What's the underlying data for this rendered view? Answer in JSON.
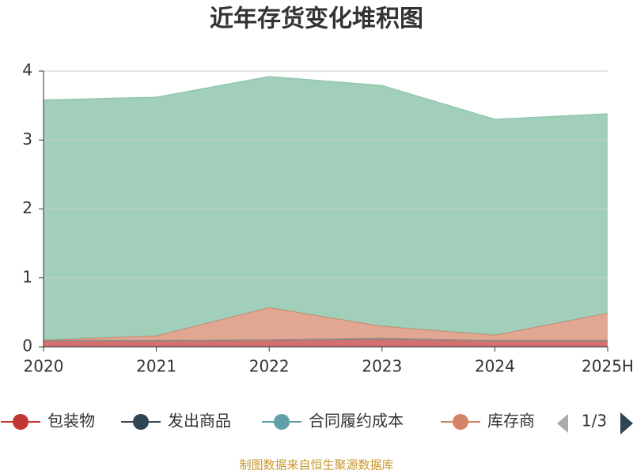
{
  "chart_data": {
    "type": "stacked_area",
    "title": "近年存货变化堆积图",
    "categories": [
      "2020",
      "2021",
      "2022",
      "2023",
      "2024",
      "2025H"
    ],
    "series": [
      {
        "name": "包装物",
        "color": "#c23531",
        "values": [
          0.09,
          0.09,
          0.1,
          0.12,
          0.09,
          0.09
        ]
      },
      {
        "name": "发出商品",
        "color": "#2f4554",
        "values": [
          0,
          0,
          0,
          0,
          0,
          0
        ]
      },
      {
        "name": "合同履约成本",
        "color": "#61a0a8",
        "values": [
          0,
          0,
          0,
          0,
          0,
          0
        ]
      },
      {
        "name": "库存商",
        "color": "#d48265",
        "values": [
          0.01,
          0.07,
          0.47,
          0.18,
          0.08,
          0.4
        ]
      },
      {
        "color": "#91c7ae",
        "values": [
          3.48,
          3.46,
          3.35,
          3.49,
          3.13,
          2.89
        ]
      }
    ],
    "ylim": [
      0,
      4
    ],
    "yticks": [
      0,
      1,
      2,
      3,
      4
    ],
    "grid": true,
    "legend_page": "1/3",
    "footer": "制图数据来自恒生聚源数据库"
  }
}
